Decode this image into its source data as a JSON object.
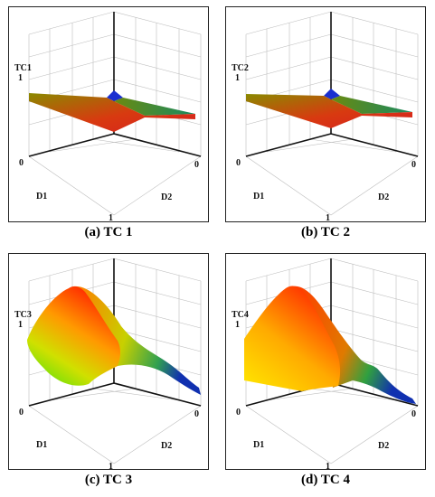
{
  "figure": {
    "panels": [
      {
        "caption": "(a) TC 1",
        "zlabel": "TC1",
        "ztick_top": "1",
        "d1_label": "D1",
        "d2_label": "D2",
        "tick_left": "0",
        "tick_right": "0",
        "tick_bottom": "1"
      },
      {
        "caption": "(b) TC 2",
        "zlabel": "TC2",
        "ztick_top": "1",
        "d1_label": "D1",
        "d2_label": "D2",
        "tick_left": "0",
        "tick_right": "0",
        "tick_bottom": "1"
      },
      {
        "caption": "(c) TC 3",
        "zlabel": "TC3",
        "ztick_top": "1",
        "d1_label": "D1",
        "d2_label": "D2",
        "tick_left": "0",
        "tick_right": "0",
        "tick_bottom": "1"
      },
      {
        "caption": "(d) TC 4",
        "zlabel": "TC4",
        "ztick_top": "1",
        "d1_label": "D1",
        "d2_label": "D2",
        "tick_left": "0",
        "tick_right": "0",
        "tick_bottom": "1"
      }
    ]
  },
  "chart_data": [
    {
      "type": "surface",
      "title": "",
      "x_label": "D1",
      "y_label": "D2",
      "z_label": "TC1",
      "x_range": [
        0,
        1
      ],
      "y_range": [
        0,
        1
      ],
      "z_range": [
        0,
        1
      ],
      "x": [
        0,
        0.5,
        1
      ],
      "y": [
        0,
        0.5,
        1
      ],
      "z": [
        [
          0.35,
          0.22,
          0.4
        ],
        [
          0.22,
          0.1,
          0.22
        ],
        [
          0.4,
          0.22,
          0.45
        ]
      ],
      "colors": [
        "#1a2fd0",
        "#22a040",
        "#d62020"
      ]
    },
    {
      "type": "surface",
      "title": "",
      "x_label": "D1",
      "y_label": "D2",
      "z_label": "TC2",
      "x_range": [
        0,
        1
      ],
      "y_range": [
        0,
        1
      ],
      "z_range": [
        0,
        1
      ],
      "x": [
        0,
        0.5,
        1
      ],
      "y": [
        0,
        0.5,
        1
      ],
      "z": [
        [
          0.38,
          0.24,
          0.42
        ],
        [
          0.24,
          0.12,
          0.24
        ],
        [
          0.42,
          0.24,
          0.48
        ]
      ],
      "colors": [
        "#1a2fd0",
        "#22a040",
        "#d62020"
      ]
    },
    {
      "type": "surface",
      "title": "",
      "x_label": "D1",
      "y_label": "D2",
      "z_label": "TC3",
      "x_range": [
        0,
        1
      ],
      "y_range": [
        0,
        1
      ],
      "z_range": [
        0,
        1
      ],
      "x": [
        0,
        0.5,
        1
      ],
      "y": [
        0,
        0.5,
        1
      ],
      "z": [
        [
          0.8,
          0.55,
          0.05
        ],
        [
          0.85,
          0.45,
          0.1
        ],
        [
          0.7,
          0.4,
          0.05
        ]
      ],
      "colors": [
        "#ff2a00",
        "#ffd000",
        "#50e010",
        "#1030b0"
      ]
    },
    {
      "type": "surface",
      "title": "",
      "x_label": "D1",
      "y_label": "D2",
      "z_label": "TC4",
      "x_range": [
        0,
        1
      ],
      "y_range": [
        0,
        1
      ],
      "z_range": [
        0,
        1
      ],
      "x": [
        0,
        0.5,
        1
      ],
      "y": [
        0,
        0.5,
        1
      ],
      "z": [
        [
          0.9,
          0.65,
          0.05
        ],
        [
          0.85,
          0.6,
          0.05
        ],
        [
          0.75,
          0.55,
          0.05
        ]
      ],
      "colors": [
        "#ff2a00",
        "#ffea00",
        "#1030b0"
      ]
    }
  ]
}
